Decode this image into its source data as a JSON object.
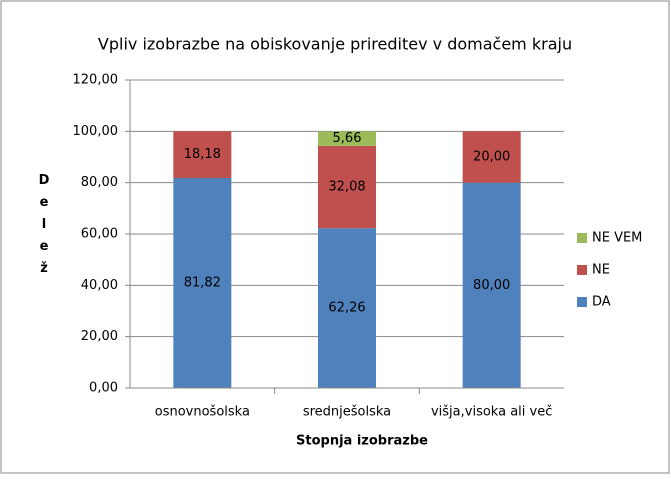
{
  "chart_data": {
    "type": "stacked_bar",
    "title": "Vpliv izobrazbe na obiskovanje prireditev  v domačem kraju",
    "xlabel": "Stopnja izobrazbe",
    "ylabel": "Delež",
    "categories": [
      "osnovnošolska",
      "srednješolska",
      "višja,visoka ali več"
    ],
    "series": [
      {
        "name": "DA",
        "color": "#4f81bd",
        "values": [
          81.82,
          62.26,
          80
        ],
        "value_labels": [
          "81,82",
          "62,26",
          "80,00"
        ]
      },
      {
        "name": "NE",
        "color": "#c0504d",
        "values": [
          18.18,
          32.08,
          20
        ],
        "value_labels": [
          "18,18",
          "32,08",
          "20,00"
        ]
      },
      {
        "name": "NE VEM",
        "color": "#9bbb59",
        "values": [
          null,
          5.66,
          null
        ],
        "value_labels": [
          null,
          "5,66",
          null
        ]
      }
    ],
    "ylim": [
      0,
      120
    ],
    "yticks": [
      {
        "value": 0,
        "label": "0,00"
      },
      {
        "value": 20,
        "label": "20,00"
      },
      {
        "value": 40,
        "label": "40,00"
      },
      {
        "value": 60,
        "label": "60,00"
      },
      {
        "value": 80,
        "label": "80,00"
      },
      {
        "value": 100,
        "label": "100,00"
      },
      {
        "value": 120,
        "label": "120,00"
      }
    ],
    "grid": true,
    "legend": "right"
  }
}
